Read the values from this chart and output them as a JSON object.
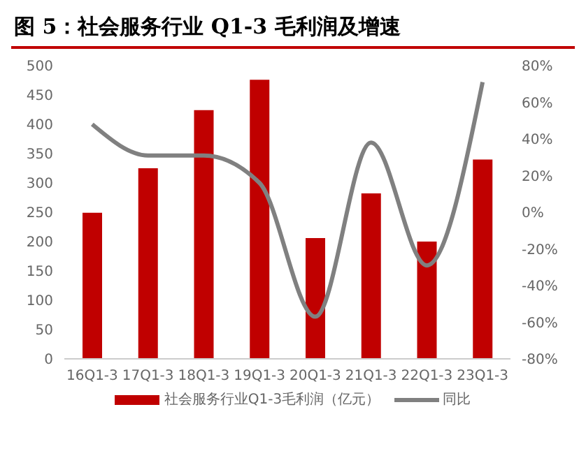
{
  "chart_data": {
    "type": "bar",
    "title": "图 5：社会服务行业 Q1-3 毛利润及增速",
    "categories": [
      "16Q1-3",
      "17Q1-3",
      "18Q1-3",
      "19Q1-3",
      "20Q1-3",
      "21Q1-3",
      "22Q1-3",
      "23Q1-3"
    ],
    "series": [
      {
        "name": "社会服务行业Q1-3毛利润（亿元）",
        "color": "#c00000",
        "values": [
          249,
          325,
          424,
          476,
          206,
          282,
          200,
          340
        ]
      },
      {
        "name": "同比",
        "type": "line",
        "axis": "y2",
        "color": "#808080",
        "values": [
          48,
          31,
          31,
          16,
          -57,
          38,
          -29,
          71
        ]
      }
    ],
    "ylim": [
      0,
      500
    ],
    "yticks": [
      0,
      50,
      100,
      150,
      200,
      250,
      300,
      350,
      400,
      450,
      500
    ],
    "y2lim": [
      -80,
      80
    ],
    "y2ticks": [
      {
        "value": -80,
        "label": "-80%"
      },
      {
        "value": -60,
        "label": "-60%"
      },
      {
        "value": -40,
        "label": "-40%"
      },
      {
        "value": -20,
        "label": "-20%"
      },
      {
        "value": 0,
        "label": "0%"
      },
      {
        "value": 20,
        "label": "20%"
      },
      {
        "value": 40,
        "label": "40%"
      },
      {
        "value": 60,
        "label": "60%"
      },
      {
        "value": 80,
        "label": "80%"
      }
    ],
    "legend": "bottom",
    "grid": false,
    "marker": "none",
    "line_style": "solid"
  }
}
